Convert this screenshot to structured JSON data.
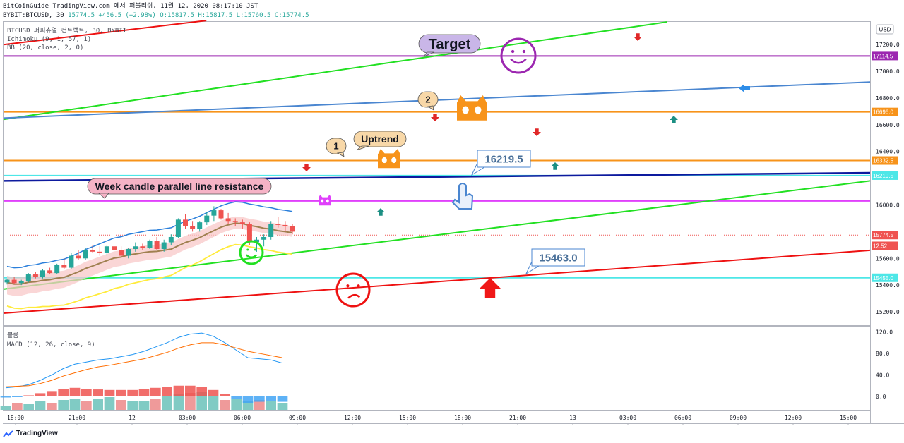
{
  "header": {
    "line1": "BitCoinGuide TradingView.com 에서 퍼블리쉬, 11월 12, 2020 08:17:10 JST",
    "symbol": "BYBIT:BTCUSD, 30",
    "change": "+456.5 (+2.98%)",
    "open": "O:15817.5",
    "high": "H:15817.5",
    "low": "L:15760.5",
    "close": "C:15774.5",
    "price": "15774.5"
  },
  "legend": {
    "main": "BTCUSD 퍼피츄얼 컨트랙트, 30, BYBIT",
    "ichimoku": "Ichimoku (9, 1, 57, 1)",
    "bb": "BB (20, close, 2, 0)"
  },
  "macd_legend": {
    "pane_title": "볼륨",
    "macd": "MACD (12, 26, close, 9)"
  },
  "currency_badge": "USD",
  "footer": {
    "brand": "TradingView"
  },
  "colors": {
    "up": "#26a69a",
    "down": "#ef5350",
    "purple": "#9c27b0",
    "orange": "#f7931a",
    "blue": "#4a86d0",
    "green": "#22e022",
    "red": "#ee1111",
    "cyan": "#4de7e7",
    "magenta": "#e040fb",
    "navy": "#0d1a9e"
  },
  "chart_data": {
    "type": "candlestick",
    "price_axis": {
      "ticks": [
        17200,
        17000,
        16800,
        16600,
        16400,
        16200,
        16000,
        15800,
        15600,
        15400,
        15200
      ],
      "tick_labels": [
        "17200.0",
        "17000.0",
        "16800.0",
        "16600.0",
        "16400.0",
        "",
        "16000.0",
        "",
        "15600.0",
        "15400.0",
        "15200.0"
      ],
      "range": [
        15100,
        17370
      ]
    },
    "price_tags": [
      {
        "value": 17114.5,
        "label": "17114.5",
        "color": "#9c27b0"
      },
      {
        "value": 16696.0,
        "label": "16696.0",
        "color": "#f7931a"
      },
      {
        "value": 16332.5,
        "label": "16332.5",
        "color": "#f7931a"
      },
      {
        "value": 16219.5,
        "label": "16219.5",
        "color": "#4de7e7"
      },
      {
        "value": 15774.5,
        "label": "15774.5",
        "color": "#ef5350"
      },
      {
        "value": 15694,
        "label": "12:52",
        "color": "#ef5350"
      },
      {
        "value": 15455.0,
        "label": "15455.0",
        "color": "#4de7e7"
      }
    ],
    "time_axis": {
      "labels": [
        "18:00",
        "21:00",
        "12",
        "03:00",
        "06:00",
        "09:00",
        "12:00",
        "15:00",
        "18:00",
        "21:00",
        "13",
        "03:00",
        "06:00",
        "09:00",
        "12:00",
        "15:00"
      ],
      "start_hour": 17,
      "hours_span": 47
    },
    "horizontal_lines": [
      {
        "name": "Target",
        "value": 17114.5,
        "color": "#9c27b0"
      },
      {
        "name": "orange-upper",
        "value": 16696.0,
        "color": "#f7931a"
      },
      {
        "name": "orange-lower",
        "value": 16332.5,
        "color": "#f7931a"
      },
      {
        "name": "cyan-upper",
        "value": 16219.5,
        "color": "#4de7e7"
      },
      {
        "name": "magenta",
        "value": 16030,
        "color": "#e040fb"
      },
      {
        "name": "cyan-lower",
        "value": 15455.0,
        "color": "#4de7e7"
      }
    ],
    "trend_lines": [
      {
        "name": "green-upper",
        "from": [
          17,
          16640
        ],
        "to": [
          53,
          17370
        ],
        "color": "#22e022"
      },
      {
        "name": "blue",
        "from": [
          17,
          16650
        ],
        "to": [
          64,
          16920
        ],
        "color": "#4a86d0"
      },
      {
        "name": "navy",
        "from": [
          17,
          16180
        ],
        "to": [
          64,
          16240
        ],
        "color": "#0d1a9e"
      },
      {
        "name": "green-lower",
        "from": [
          17,
          15370
        ],
        "to": [
          64,
          16180
        ],
        "color": "#22e022"
      },
      {
        "name": "red-lower",
        "from": [
          17,
          15190
        ],
        "to": [
          64,
          15660
        ],
        "color": "#ee1111"
      },
      {
        "name": "red-upper",
        "from": [
          17,
          17200
        ],
        "to": [
          28,
          17380
        ],
        "color": "#ee1111"
      }
    ],
    "candles": [
      [
        15420,
        15445,
        15405,
        15440
      ],
      [
        15440,
        15460,
        15410,
        15415
      ],
      [
        15415,
        15440,
        15400,
        15430
      ],
      [
        15430,
        15490,
        15420,
        15480
      ],
      [
        15480,
        15500,
        15450,
        15460
      ],
      [
        15460,
        15520,
        15450,
        15510
      ],
      [
        15510,
        15530,
        15480,
        15490
      ],
      [
        15490,
        15560,
        15480,
        15550
      ],
      [
        15550,
        15600,
        15520,
        15530
      ],
      [
        15530,
        15640,
        15520,
        15620
      ],
      [
        15620,
        15660,
        15590,
        15600
      ],
      [
        15600,
        15680,
        15590,
        15660
      ],
      [
        15660,
        15700,
        15640,
        15650
      ],
      [
        15650,
        15690,
        15620,
        15640
      ],
      [
        15640,
        15700,
        15620,
        15690
      ],
      [
        15690,
        15720,
        15650,
        15660
      ],
      [
        15660,
        15690,
        15610,
        15620
      ],
      [
        15620,
        15680,
        15600,
        15670
      ],
      [
        15670,
        15720,
        15650,
        15690
      ],
      [
        15690,
        15710,
        15660,
        15680
      ],
      [
        15680,
        15740,
        15670,
        15730
      ],
      [
        15730,
        15760,
        15660,
        15670
      ],
      [
        15670,
        15740,
        15650,
        15720
      ],
      [
        15720,
        15780,
        15700,
        15760
      ],
      [
        15760,
        15900,
        15750,
        15890
      ],
      [
        15890,
        15930,
        15820,
        15840
      ],
      [
        15840,
        15880,
        15800,
        15820
      ],
      [
        15820,
        15880,
        15800,
        15870
      ],
      [
        15870,
        15950,
        15850,
        15920
      ],
      [
        15920,
        15990,
        15880,
        15960
      ],
      [
        15960,
        15970,
        15890,
        15900
      ],
      [
        15900,
        15940,
        15860,
        15880
      ],
      [
        15880,
        15900,
        15840,
        15870
      ],
      [
        15870,
        15890,
        15820,
        15860
      ],
      [
        15860,
        15870,
        15700,
        15720
      ],
      [
        15720,
        15760,
        15650,
        15740
      ],
      [
        15740,
        15780,
        15690,
        15760
      ],
      [
        15760,
        15880,
        15740,
        15860
      ],
      [
        15860,
        15910,
        15830,
        15850
      ],
      [
        15850,
        15880,
        15800,
        15840
      ],
      [
        15840,
        15860,
        15780,
        15800
      ]
    ],
    "annotations": [
      {
        "label": "Target",
        "type": "bubble"
      },
      {
        "label": "Uptrend",
        "type": "bubble"
      },
      {
        "label": "Week candle parallel line resistance",
        "type": "bubble"
      },
      {
        "label": "1",
        "type": "bubble"
      },
      {
        "label": "2",
        "type": "bubble"
      },
      {
        "label": "16219.5",
        "type": "callout"
      },
      {
        "label": "15463.0",
        "type": "callout"
      }
    ],
    "macd_axis": {
      "ticks": [
        120,
        80,
        40,
        0
      ],
      "tick_labels": [
        "120.0",
        "80.0",
        "40.0",
        "0.0"
      ],
      "range": [
        -25,
        130
      ]
    },
    "macd_line": [
      16,
      18,
      22,
      30,
      40,
      52,
      60,
      64,
      68,
      70,
      74,
      78,
      84,
      92,
      100,
      110,
      116,
      118,
      112,
      100,
      86,
      72,
      70,
      68,
      62
    ],
    "signal_line": [
      18,
      19,
      20,
      24,
      30,
      38,
      44,
      50,
      55,
      58,
      62,
      66,
      70,
      76,
      82,
      90,
      96,
      100,
      100,
      96,
      90,
      84,
      80,
      76,
      72
    ],
    "histogram": [
      -2,
      -1,
      2,
      6,
      10,
      14,
      16,
      14,
      13,
      12,
      12,
      12,
      14,
      16,
      18,
      20,
      20,
      18,
      12,
      4,
      -4,
      -12,
      -10,
      -8,
      -10
    ],
    "volume": [
      6,
      9,
      8,
      12,
      10,
      14,
      16,
      12,
      15,
      18,
      14,
      13,
      12,
      16,
      20,
      22,
      24,
      26,
      20,
      14,
      16,
      12,
      14,
      12,
      10
    ]
  }
}
